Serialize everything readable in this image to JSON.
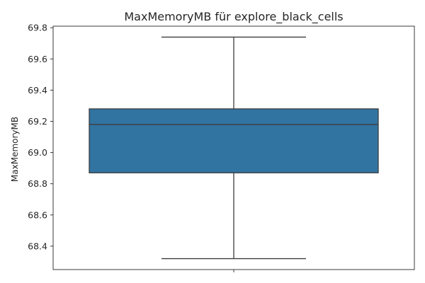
{
  "chart_data": {
    "type": "box",
    "title": "MaxMemoryMB für explore_black_cells",
    "xlabel": "",
    "ylabel": "MaxMemoryMB",
    "ylim": [
      68.25,
      69.81
    ],
    "yticks": [
      68.4,
      68.6,
      68.8,
      69.0,
      69.2,
      69.4,
      69.6,
      69.8
    ],
    "ytick_labels": [
      "68.4",
      "68.6",
      "68.8",
      "69.0",
      "69.2",
      "69.4",
      "69.6",
      "69.8"
    ],
    "grid": false,
    "box": {
      "whisker_low": 68.32,
      "q1": 68.87,
      "median": 69.18,
      "q3": 69.28,
      "whisker_high": 69.74
    },
    "colors": {
      "box_fill": "#3274a1",
      "line": "#3d3d3d",
      "axis": "#262626"
    }
  }
}
